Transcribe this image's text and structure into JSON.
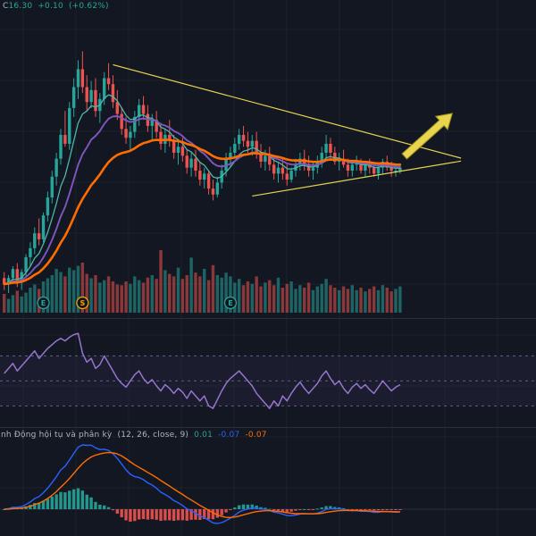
{
  "price_legend": {
    "symbol_label": "C",
    "price": "16.30",
    "change": "+0.10",
    "change_pct": "(+0.62%)"
  },
  "macd_legend": {
    "title": "nh Động hội tụ và phân kỳ",
    "params": "(12, 26, close, 9)",
    "hist": "0.01",
    "macd": "-0.07",
    "signal": "-0.07"
  },
  "chart_data": {
    "type": "candlestick-multi-panel",
    "panels": [
      "price-with-volume",
      "rsi",
      "macd"
    ],
    "price_domain": [
      11.5,
      21.8
    ],
    "rsi_domain": [
      16,
      96
    ],
    "rsi_levels": [
      70,
      50,
      30
    ],
    "ma_periods": {
      "fast": 7,
      "mid": 14,
      "slow": 28
    },
    "macd_params": {
      "fast": 12,
      "slow": 26,
      "signal": 9
    },
    "candles": [
      [
        12.6,
        12.8,
        12.2,
        12.4,
        30
      ],
      [
        12.4,
        12.7,
        12.1,
        12.6,
        22
      ],
      [
        12.6,
        13.0,
        12.4,
        12.9,
        28
      ],
      [
        12.9,
        13.1,
        12.3,
        12.5,
        35
      ],
      [
        12.5,
        12.9,
        12.2,
        12.8,
        26
      ],
      [
        12.8,
        13.4,
        12.6,
        13.3,
        32
      ],
      [
        13.3,
        13.8,
        13.0,
        13.6,
        40
      ],
      [
        13.6,
        14.3,
        13.4,
        14.1,
        45
      ],
      [
        14.1,
        14.6,
        13.7,
        13.9,
        38
      ],
      [
        13.9,
        14.8,
        13.8,
        14.7,
        50
      ],
      [
        14.7,
        15.5,
        14.5,
        15.3,
        55
      ],
      [
        15.3,
        16.2,
        15.1,
        16.0,
        60
      ],
      [
        16.0,
        16.8,
        15.7,
        16.6,
        70
      ],
      [
        16.6,
        17.6,
        16.4,
        17.4,
        65
      ],
      [
        17.4,
        18.2,
        17.0,
        17.1,
        58
      ],
      [
        17.1,
        18.5,
        16.9,
        18.3,
        72
      ],
      [
        18.3,
        19.3,
        18.0,
        19.0,
        68
      ],
      [
        19.0,
        19.9,
        18.6,
        19.6,
        75
      ],
      [
        19.6,
        20.2,
        18.8,
        19.0,
        80
      ],
      [
        19.0,
        19.4,
        18.2,
        18.5,
        62
      ],
      [
        18.5,
        19.2,
        18.3,
        18.9,
        55
      ],
      [
        18.9,
        19.3,
        18.0,
        18.2,
        60
      ],
      [
        18.2,
        18.8,
        17.8,
        18.6,
        48
      ],
      [
        18.6,
        19.5,
        18.4,
        19.3,
        52
      ],
      [
        19.3,
        19.8,
        18.9,
        19.1,
        58
      ],
      [
        19.1,
        19.4,
        18.3,
        18.5,
        50
      ],
      [
        18.5,
        18.9,
        17.9,
        18.1,
        45
      ],
      [
        18.1,
        18.3,
        17.4,
        17.6,
        44
      ],
      [
        17.6,
        18.0,
        17.1,
        17.3,
        50
      ],
      [
        17.3,
        17.7,
        16.9,
        17.5,
        46
      ],
      [
        17.5,
        18.2,
        17.3,
        18.0,
        58
      ],
      [
        18.0,
        18.6,
        17.7,
        18.4,
        52
      ],
      [
        18.4,
        18.7,
        17.9,
        18.1,
        48
      ],
      [
        18.1,
        18.4,
        17.5,
        17.7,
        56
      ],
      [
        17.7,
        18.1,
        17.2,
        17.9,
        60
      ],
      [
        17.9,
        18.2,
        17.3,
        17.5,
        54
      ],
      [
        17.5,
        17.8,
        16.9,
        17.1,
        100
      ],
      [
        17.1,
        17.6,
        16.8,
        17.4,
        68
      ],
      [
        17.4,
        17.9,
        17.0,
        17.2,
        62
      ],
      [
        17.2,
        17.4,
        16.6,
        16.8,
        58
      ],
      [
        16.8,
        17.2,
        16.4,
        17.0,
        72
      ],
      [
        17.0,
        17.3,
        16.5,
        16.7,
        54
      ],
      [
        16.7,
        16.9,
        16.1,
        16.3,
        60
      ],
      [
        16.3,
        16.8,
        16.0,
        16.6,
        88
      ],
      [
        16.6,
        16.9,
        16.0,
        16.2,
        64
      ],
      [
        16.2,
        16.5,
        15.7,
        15.9,
        58
      ],
      [
        15.9,
        16.3,
        15.6,
        16.1,
        70
      ],
      [
        16.1,
        16.2,
        15.4,
        15.6,
        52
      ],
      [
        15.6,
        15.9,
        15.2,
        15.4,
        76
      ],
      [
        15.4,
        16.0,
        15.3,
        15.8,
        60
      ],
      [
        15.8,
        16.4,
        15.6,
        16.2,
        56
      ],
      [
        16.2,
        16.8,
        16.0,
        16.6,
        64
      ],
      [
        16.6,
        17.0,
        16.3,
        16.8,
        58
      ],
      [
        16.8,
        17.3,
        16.6,
        17.1,
        48
      ],
      [
        17.1,
        17.6,
        16.9,
        17.4,
        54
      ],
      [
        17.4,
        17.7,
        17.0,
        17.2,
        44
      ],
      [
        17.2,
        17.5,
        16.8,
        17.0,
        50
      ],
      [
        17.0,
        17.4,
        16.7,
        17.2,
        46
      ],
      [
        17.2,
        17.5,
        16.6,
        16.8,
        58
      ],
      [
        16.8,
        17.1,
        16.3,
        16.5,
        42
      ],
      [
        16.5,
        16.9,
        16.2,
        16.7,
        48
      ],
      [
        16.7,
        17.0,
        16.2,
        16.4,
        52
      ],
      [
        16.4,
        16.7,
        15.9,
        16.1,
        44
      ],
      [
        16.1,
        16.5,
        15.8,
        16.3,
        56
      ],
      [
        16.3,
        16.6,
        15.9,
        16.1,
        40
      ],
      [
        16.1,
        16.4,
        15.7,
        15.9,
        46
      ],
      [
        15.9,
        16.3,
        15.8,
        16.2,
        50
      ],
      [
        16.2,
        16.6,
        16.0,
        16.4,
        38
      ],
      [
        16.4,
        16.8,
        16.2,
        16.6,
        44
      ],
      [
        16.6,
        16.9,
        16.2,
        16.4,
        40
      ],
      [
        16.4,
        16.7,
        16.0,
        16.2,
        48
      ],
      [
        16.2,
        16.5,
        15.9,
        16.3,
        36
      ],
      [
        16.3,
        16.7,
        16.1,
        16.5,
        42
      ],
      [
        16.5,
        17.0,
        16.3,
        16.8,
        46
      ],
      [
        16.8,
        17.4,
        16.6,
        17.1,
        54
      ],
      [
        17.1,
        17.3,
        16.6,
        16.8,
        44
      ],
      [
        16.8,
        17.0,
        16.4,
        16.5,
        40
      ],
      [
        16.5,
        16.8,
        16.2,
        16.6,
        36
      ],
      [
        16.6,
        16.9,
        16.3,
        16.4,
        42
      ],
      [
        16.4,
        16.6,
        16.0,
        16.2,
        38
      ],
      [
        16.2,
        16.5,
        16.0,
        16.4,
        44
      ],
      [
        16.4,
        16.7,
        16.2,
        16.5,
        36
      ],
      [
        16.5,
        16.6,
        16.1,
        16.2,
        40
      ],
      [
        16.2,
        16.5,
        16.0,
        16.4,
        34
      ],
      [
        16.4,
        16.6,
        16.1,
        16.3,
        38
      ],
      [
        16.3,
        16.5,
        16.0,
        16.1,
        42
      ],
      [
        16.1,
        16.4,
        15.9,
        16.3,
        36
      ],
      [
        16.3,
        16.6,
        16.1,
        16.5,
        44
      ],
      [
        16.5,
        16.7,
        16.2,
        16.3,
        40
      ],
      [
        16.3,
        16.5,
        16.0,
        16.2,
        34
      ],
      [
        16.2,
        16.4,
        16.0,
        16.2,
        38
      ],
      [
        16.2,
        16.45,
        16.1,
        16.3,
        42
      ]
    ],
    "rsi": [
      56,
      60,
      64,
      58,
      62,
      66,
      70,
      74,
      68,
      72,
      76,
      79,
      82,
      84,
      82,
      85,
      87,
      88,
      72,
      65,
      68,
      60,
      63,
      70,
      64,
      58,
      52,
      48,
      45,
      50,
      55,
      58,
      52,
      48,
      51,
      46,
      42,
      47,
      44,
      40,
      44,
      41,
      36,
      42,
      38,
      34,
      38,
      30,
      28,
      35,
      42,
      48,
      52,
      55,
      58,
      54,
      50,
      46,
      40,
      36,
      32,
      28,
      34,
      30,
      38,
      34,
      40,
      45,
      49,
      44,
      40,
      44,
      48,
      54,
      58,
      52,
      47,
      50,
      44,
      40,
      45,
      48,
      44,
      47,
      43,
      40,
      45,
      50,
      46,
      42,
      45,
      47
    ],
    "markers": [
      {
        "index": 9,
        "label": "E",
        "color": "#26a69a"
      },
      {
        "index": 18,
        "label": "S",
        "color": "#f7a600"
      },
      {
        "index": 52,
        "label": "E",
        "color": "#26a69a"
      }
    ],
    "trendlines": [
      {
        "name": "upper",
        "from": [
          25,
          19.75
        ],
        "to": [
          105,
          16.62
        ]
      },
      {
        "name": "lower",
        "from": [
          57,
          15.35
        ],
        "to": [
          105,
          16.52
        ]
      }
    ],
    "arrow": {
      "from": [
        92,
        16.68
      ],
      "to": [
        103,
        18.12
      ]
    },
    "colors": {
      "background": "#131722",
      "grid": "rgba(178,181,190,0.06)",
      "divider": "#2a2e39",
      "up": "#26a69a",
      "down": "#ef5350",
      "volume_up": "rgba(38,166,154,0.55)",
      "volume_down": "rgba(239,83,80,0.55)",
      "ma_fast": "#4db6ac",
      "ma_mid": "#7e57c2",
      "ma_slow": "#ff6d00",
      "rsi_line": "#9575cd",
      "rsi_band": "rgba(126,87,194,0.08)",
      "rsi_level": "#5d6183",
      "macd_line": "#2962ff",
      "signal_line": "#ff6d00",
      "hist_up": "#26a69a",
      "hist_down": "#ef5350",
      "trendline": "#e5d352",
      "arrow_fill": "#e8d44d",
      "arrow_stroke": "#9b8c1e",
      "legend_text": "#b2b5be"
    }
  }
}
